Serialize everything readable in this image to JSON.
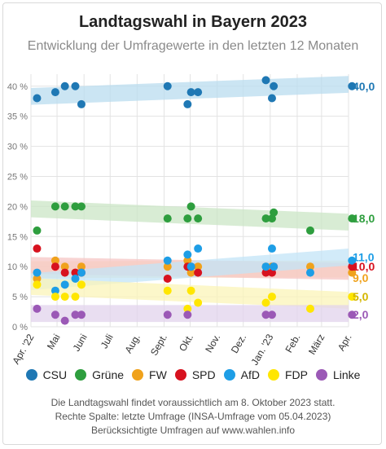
{
  "title": "Landtagswahl in Bayern 2023",
  "subtitle": "Entwicklung der Umfragewerte in den letzten 12 Monaten",
  "footer": {
    "line1": "Die Landtagswahl findet voraussichtlich am 8. Oktober 2023 statt.",
    "line2": "Rechte Spalte: letzte Umfrage (INSA-Umfrage vom 05.04.2023)",
    "line3": "Berücksichtigte Umfragen auf www.wahlen.info"
  },
  "chart_data": {
    "type": "scatter",
    "title": "Landtagswahl in Bayern 2023",
    "subtitle": "Entwicklung der Umfragewerte in den letzten 12 Monaten",
    "xlim": [
      "2022-04-01",
      "2023-04-01"
    ],
    "ylim": [
      0,
      42
    ],
    "yticks": [
      0,
      5,
      10,
      15,
      20,
      25,
      30,
      35,
      40
    ],
    "ytick_labels": [
      "0 %",
      "5 %",
      "10 %",
      "15 %",
      "20 %",
      "25 %",
      "30 %",
      "35 %",
      "40 %"
    ],
    "xticks": [
      "2022-04-01",
      "2022-05-01",
      "2022-06-01",
      "2022-07-01",
      "2022-08-01",
      "2022-09-01",
      "2022-10-01",
      "2022-11-01",
      "2022-12-01",
      "2023-01-01",
      "2023-02-01",
      "2023-03-01",
      "2023-04-01"
    ],
    "xtick_labels": [
      "Apr. '22",
      "Mai",
      "Juni",
      "Juli",
      "Aug.",
      "Sept.",
      "Okt.",
      "Nov.",
      "Dez.",
      "Jan. '23",
      "Feb.",
      "März",
      "Apr."
    ],
    "grid": true,
    "legend_position": "bottom",
    "series": [
      {
        "name": "CSU",
        "color": "#1f78b4",
        "band_color": "#b9dcef",
        "latest": "40,0",
        "trend": [
          38.3,
          40.3
        ],
        "points": [
          [
            "2022-04-08",
            38
          ],
          [
            "2022-04-29",
            39
          ],
          [
            "2022-05-10",
            40
          ],
          [
            "2022-05-22",
            40
          ],
          [
            "2022-05-29",
            37
          ],
          [
            "2022-09-05",
            40
          ],
          [
            "2022-09-28",
            37
          ],
          [
            "2022-10-02",
            39
          ],
          [
            "2022-10-10",
            39
          ],
          [
            "2022-12-27",
            41
          ],
          [
            "2023-01-03",
            38
          ],
          [
            "2023-01-05",
            40
          ],
          [
            "2023-04-05",
            40
          ]
        ]
      },
      {
        "name": "Grüne",
        "color": "#2e9e3e",
        "band_color": "#cbe6c5",
        "latest": "18,0",
        "trend": [
          19.6,
          17.4
        ],
        "points": [
          [
            "2022-04-08",
            16
          ],
          [
            "2022-04-29",
            20
          ],
          [
            "2022-05-10",
            20
          ],
          [
            "2022-05-22",
            20
          ],
          [
            "2022-05-29",
            20
          ],
          [
            "2022-09-05",
            18
          ],
          [
            "2022-09-28",
            18
          ],
          [
            "2022-10-02",
            20
          ],
          [
            "2022-10-10",
            18
          ],
          [
            "2022-12-27",
            18
          ],
          [
            "2023-01-03",
            18
          ],
          [
            "2023-01-05",
            19
          ],
          [
            "2023-02-16",
            16
          ],
          [
            "2023-04-05",
            18
          ]
        ]
      },
      {
        "name": "FW",
        "color": "#f0a21c",
        "band_color": "#fbe3bd",
        "latest": "9,0",
        "trend": [
          9.5,
          9.6
        ],
        "points": [
          [
            "2022-04-08",
            8
          ],
          [
            "2022-04-29",
            11
          ],
          [
            "2022-05-10",
            10
          ],
          [
            "2022-05-22",
            9
          ],
          [
            "2022-05-29",
            10
          ],
          [
            "2022-09-05",
            10
          ],
          [
            "2022-09-28",
            11
          ],
          [
            "2022-10-02",
            9
          ],
          [
            "2022-10-10",
            10
          ],
          [
            "2022-12-27",
            10
          ],
          [
            "2023-01-03",
            10
          ],
          [
            "2023-02-16",
            10
          ],
          [
            "2023-04-05",
            9
          ]
        ]
      },
      {
        "name": "SPD",
        "color": "#d7121f",
        "band_color": "#f6c6c4",
        "latest": "10,0",
        "trend": [
          10.2,
          9.2
        ],
        "points": [
          [
            "2022-04-08",
            13
          ],
          [
            "2022-04-29",
            10
          ],
          [
            "2022-05-10",
            9
          ],
          [
            "2022-05-22",
            9
          ],
          [
            "2022-05-29",
            9
          ],
          [
            "2022-09-05",
            8
          ],
          [
            "2022-09-28",
            10
          ],
          [
            "2022-10-02",
            10
          ],
          [
            "2022-10-10",
            9
          ],
          [
            "2022-12-27",
            9
          ],
          [
            "2023-01-03",
            9
          ],
          [
            "2023-01-05",
            10
          ],
          [
            "2023-04-05",
            10
          ]
        ]
      },
      {
        "name": "AfD",
        "color": "#1e9ee6",
        "band_color": "#c3e4f7",
        "latest": "11,0",
        "trend": [
          7.5,
          11.6
        ],
        "points": [
          [
            "2022-04-08",
            9
          ],
          [
            "2022-04-29",
            6
          ],
          [
            "2022-05-10",
            7
          ],
          [
            "2022-05-22",
            8
          ],
          [
            "2022-05-29",
            9
          ],
          [
            "2022-09-05",
            11
          ],
          [
            "2022-09-28",
            12
          ],
          [
            "2022-10-02",
            10
          ],
          [
            "2022-10-10",
            13
          ],
          [
            "2022-12-27",
            10
          ],
          [
            "2023-01-03",
            13
          ],
          [
            "2023-01-05",
            10
          ],
          [
            "2023-02-16",
            9
          ],
          [
            "2023-04-05",
            11
          ]
        ]
      },
      {
        "name": "FDP",
        "color": "#ffe600",
        "band_color": "#fbf4b8",
        "latest": "5,0",
        "trend": [
          6.7,
          4.4
        ],
        "points": [
          [
            "2022-04-08",
            7
          ],
          [
            "2022-04-29",
            5
          ],
          [
            "2022-05-10",
            5
          ],
          [
            "2022-05-22",
            5
          ],
          [
            "2022-05-29",
            7
          ],
          [
            "2022-09-05",
            6
          ],
          [
            "2022-09-28",
            3
          ],
          [
            "2022-10-02",
            6
          ],
          [
            "2022-10-10",
            4
          ],
          [
            "2022-12-27",
            4
          ],
          [
            "2023-01-03",
            5
          ],
          [
            "2023-02-16",
            3
          ],
          [
            "2023-04-05",
            5
          ]
        ]
      },
      {
        "name": "Linke",
        "color": "#9b59b6",
        "band_color": "#e2d3ec",
        "latest": "2,0",
        "trend": [
          2.2,
          2.2
        ],
        "points": [
          [
            "2022-04-08",
            3
          ],
          [
            "2022-04-29",
            2
          ],
          [
            "2022-05-10",
            1
          ],
          [
            "2022-05-22",
            2
          ],
          [
            "2022-05-29",
            2
          ],
          [
            "2022-09-05",
            2
          ],
          [
            "2022-09-28",
            2
          ],
          [
            "2022-12-27",
            2
          ],
          [
            "2023-01-03",
            2
          ],
          [
            "2023-04-05",
            2
          ]
        ]
      }
    ]
  }
}
